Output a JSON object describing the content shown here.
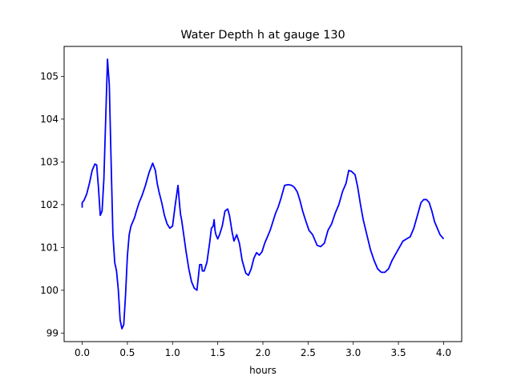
{
  "chart_data": {
    "type": "line",
    "title": "Water Depth h at gauge 130",
    "xlabel": "hours",
    "ylabel": "",
    "xlim": [
      -0.2,
      4.2
    ],
    "ylim": [
      98.8,
      105.7
    ],
    "xticks": [
      0.0,
      0.5,
      1.0,
      1.5,
      2.0,
      2.5,
      3.0,
      3.5,
      4.0
    ],
    "xtick_labels": [
      "0.0",
      "0.5",
      "1.0",
      "1.5",
      "2.0",
      "2.5",
      "3.0",
      "3.5",
      "4.0"
    ],
    "yticks": [
      99,
      100,
      101,
      102,
      103,
      104,
      105
    ],
    "ytick_labels": [
      "99",
      "100",
      "101",
      "102",
      "103",
      "104",
      "105"
    ],
    "grid": false,
    "line_color": "#0000ff",
    "series": [
      {
        "x": [
          0.0,
          0.0,
          0.02,
          0.05,
          0.08,
          0.11,
          0.14,
          0.16,
          0.18,
          0.2,
          0.22,
          0.24,
          0.26,
          0.28,
          0.3,
          0.32,
          0.34,
          0.36,
          0.38,
          0.4,
          0.42,
          0.44,
          0.46,
          0.48,
          0.5,
          0.52,
          0.54,
          0.56,
          0.58,
          0.6,
          0.63,
          0.66,
          0.7,
          0.74,
          0.78,
          0.81,
          0.83,
          0.85,
          0.88,
          0.91,
          0.94,
          0.97,
          1.0,
          1.03,
          1.06,
          1.08,
          1.09,
          1.1,
          1.12,
          1.15,
          1.18,
          1.21,
          1.24,
          1.27,
          1.3,
          1.32,
          1.33,
          1.35,
          1.38,
          1.41,
          1.43,
          1.45,
          1.46,
          1.47,
          1.48,
          1.5,
          1.52,
          1.55,
          1.58,
          1.61,
          1.63,
          1.66,
          1.68,
          1.71,
          1.74,
          1.77,
          1.81,
          1.84,
          1.87,
          1.9,
          1.93,
          1.96,
          1.99,
          2.02,
          2.05,
          2.08,
          2.11,
          2.14,
          2.17,
          2.2,
          2.24,
          2.28,
          2.32,
          2.35,
          2.38,
          2.41,
          2.44,
          2.47,
          2.51,
          2.55,
          2.6,
          2.64,
          2.68,
          2.72,
          2.76,
          2.8,
          2.84,
          2.88,
          2.92,
          2.95,
          2.98,
          3.02,
          3.05,
          3.08,
          3.11,
          3.15,
          3.19,
          3.23,
          3.27,
          3.31,
          3.35,
          3.39,
          3.43,
          3.47,
          3.51,
          3.55,
          3.59,
          3.63,
          3.67,
          3.71,
          3.75,
          3.78,
          3.81,
          3.84,
          3.87,
          3.9,
          3.93,
          3.96,
          4.0
        ],
        "values": [
          101.93,
          102.05,
          102.1,
          102.25,
          102.5,
          102.8,
          102.95,
          102.93,
          102.4,
          101.75,
          101.85,
          102.6,
          104.0,
          105.4,
          104.8,
          103.0,
          101.3,
          100.65,
          100.45,
          100.0,
          99.3,
          99.1,
          99.2,
          99.9,
          100.8,
          101.3,
          101.5,
          101.6,
          101.7,
          101.85,
          102.05,
          102.2,
          102.45,
          102.75,
          102.97,
          102.8,
          102.5,
          102.3,
          102.05,
          101.75,
          101.55,
          101.45,
          101.5,
          102.0,
          102.45,
          101.95,
          101.75,
          101.65,
          101.35,
          100.9,
          100.5,
          100.2,
          100.05,
          100.0,
          100.6,
          100.6,
          100.45,
          100.45,
          100.65,
          101.1,
          101.45,
          101.5,
          101.65,
          101.4,
          101.3,
          101.2,
          101.3,
          101.5,
          101.85,
          101.9,
          101.75,
          101.35,
          101.15,
          101.3,
          101.1,
          100.7,
          100.4,
          100.35,
          100.5,
          100.75,
          100.88,
          100.82,
          100.9,
          101.1,
          101.25,
          101.4,
          101.6,
          101.8,
          101.95,
          102.15,
          102.45,
          102.47,
          102.45,
          102.4,
          102.3,
          102.1,
          101.85,
          101.65,
          101.4,
          101.3,
          101.05,
          101.02,
          101.1,
          101.4,
          101.55,
          101.8,
          102.0,
          102.3,
          102.5,
          102.8,
          102.78,
          102.7,
          102.4,
          102.0,
          101.65,
          101.3,
          100.95,
          100.7,
          100.5,
          100.42,
          100.42,
          100.5,
          100.7,
          100.85,
          101.0,
          101.15,
          101.2,
          101.25,
          101.45,
          101.75,
          102.05,
          102.12,
          102.12,
          102.05,
          101.85,
          101.6,
          101.45,
          101.3,
          101.2
        ]
      }
    ]
  }
}
